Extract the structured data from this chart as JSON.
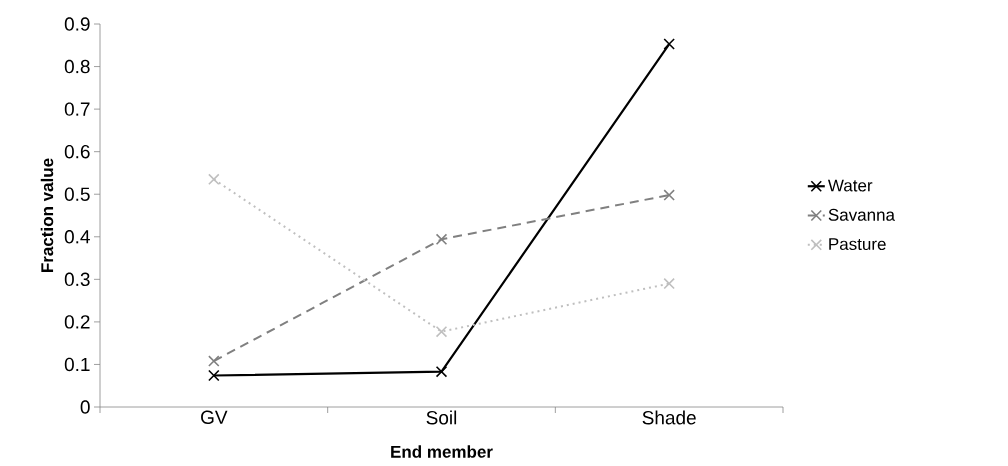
{
  "chart_data": {
    "type": "line",
    "xlabel": "End member",
    "ylabel": "Fraction value",
    "categories": [
      "GV",
      "Soil",
      "Shade"
    ],
    "series": [
      {
        "name": "Water",
        "color": "#000000",
        "line_style": "solid",
        "values": [
          0.074,
          0.083,
          0.853
        ]
      },
      {
        "name": "Savanna",
        "color": "#808080",
        "line_style": "dashed",
        "values": [
          0.108,
          0.394,
          0.498
        ]
      },
      {
        "name": "Pasture",
        "color": "#bfbfbf",
        "line_style": "dotted",
        "values": [
          0.535,
          0.177,
          0.29
        ]
      }
    ],
    "ylim": [
      0,
      0.9
    ],
    "yticks": [
      0,
      0.1,
      0.2,
      0.3,
      0.4,
      0.5,
      0.6,
      0.7,
      0.8,
      0.9
    ],
    "marker": "cross",
    "grid": false,
    "legend": "right"
  }
}
